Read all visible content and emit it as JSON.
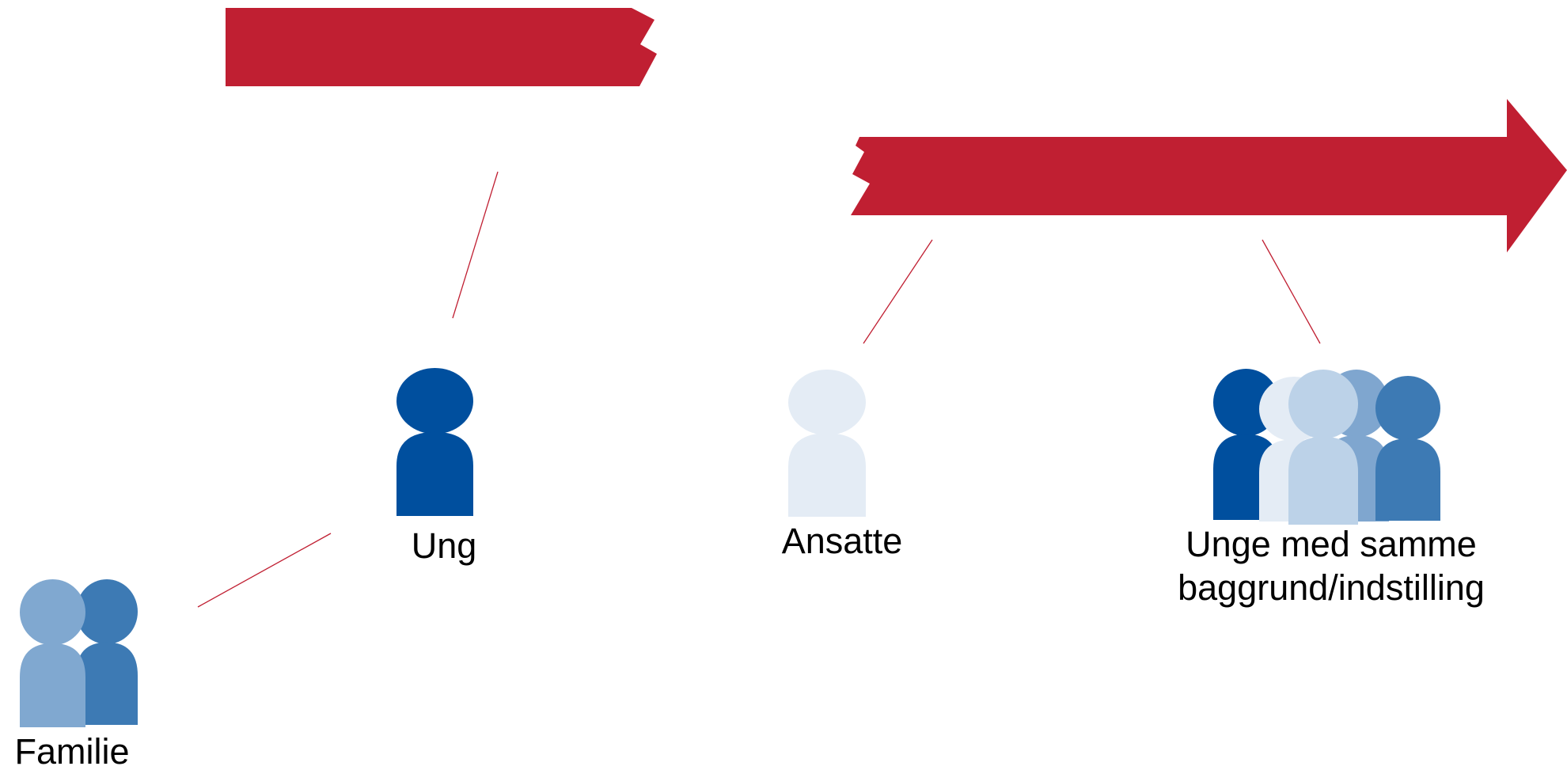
{
  "labels": {
    "ung": "Ung",
    "ansatte": "Ansatte",
    "peers": [
      "Unge med samme",
      "baggrund/indstilling"
    ],
    "familie": "Familie"
  }
}
